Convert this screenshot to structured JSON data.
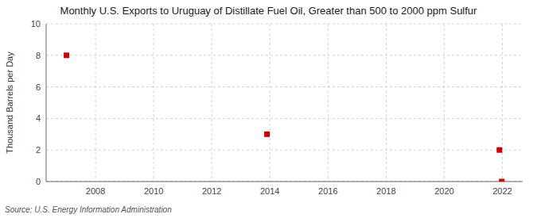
{
  "chart_data": {
    "type": "scatter",
    "title": "Monthly U.S. Exports to Uruguay of Distillate Fuel Oil, Greater than 500 to 2000 ppm Sulfur",
    "ylabel": "Thousand Barrels per Day",
    "source": "Source: U.S. Energy Information Administration",
    "x": [
      2007.0,
      2013.9,
      2021.9,
      2021.98
    ],
    "values": [
      8.0,
      3.0,
      2.0,
      0.0
    ],
    "color": "#cc0000",
    "marker": "square",
    "xlim": [
      2006.3,
      2022.7
    ],
    "ylim": [
      0,
      10
    ],
    "xticks": [
      2008,
      2010,
      2012,
      2014,
      2016,
      2018,
      2020,
      2022
    ],
    "yticks": [
      0,
      2,
      4,
      6,
      8,
      10
    ],
    "grid": true
  }
}
